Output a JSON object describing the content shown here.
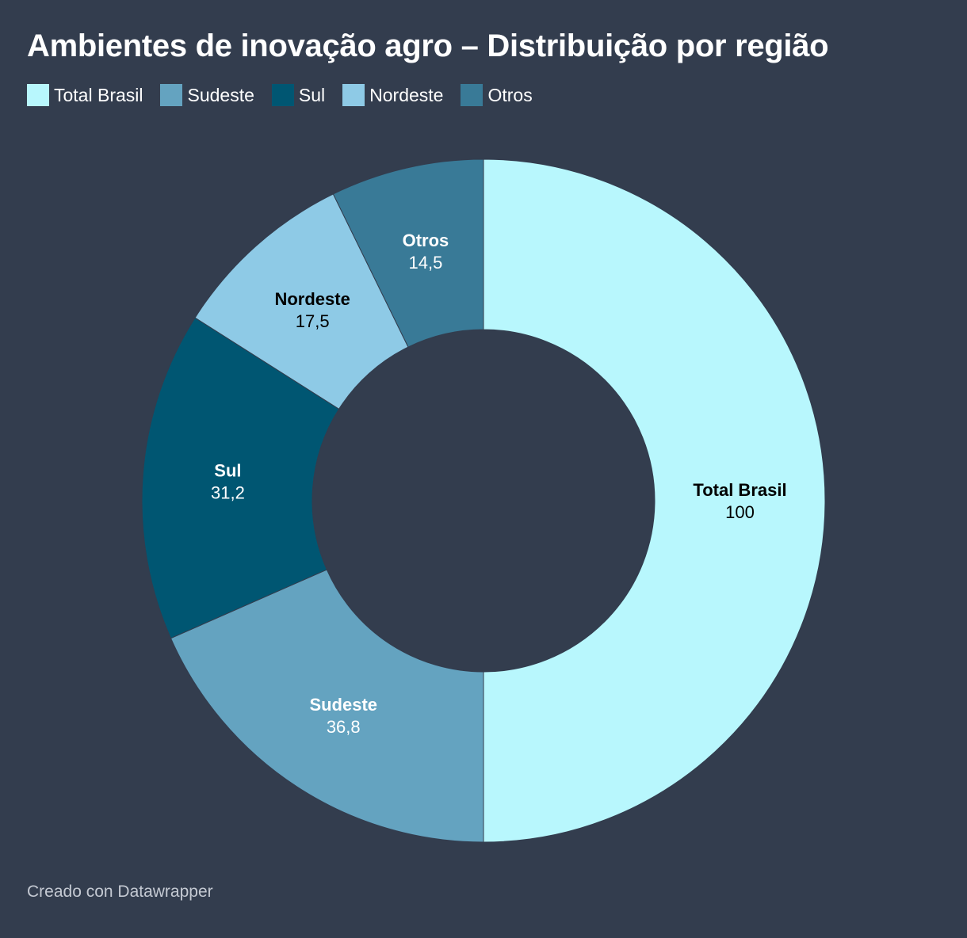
{
  "title": "Ambientes de inovação agro – Distribuição por região",
  "footer": "Creado con Datawrapper",
  "colors": {
    "background": "#333d4e",
    "total_brasil": "#b8f7fd",
    "sudeste": "#64a3c0",
    "sul": "#005672",
    "nordeste": "#8ecae6",
    "otros": "#397a97"
  },
  "chart_data": {
    "type": "donut",
    "title": "Ambientes de inovação agro – Distribuição por região",
    "categories": [
      "Total Brasil",
      "Sudeste",
      "Sul",
      "Nordeste",
      "Otros"
    ],
    "values": [
      100,
      36.8,
      31.2,
      17.5,
      14.5
    ],
    "value_labels": [
      "100",
      "36,8",
      "31,2",
      "17,5",
      "14,5"
    ],
    "colors": [
      "#b8f7fd",
      "#64a3c0",
      "#005672",
      "#8ecae6",
      "#397a97"
    ],
    "label_colors": [
      "#000000",
      "#ffffff",
      "#ffffff",
      "#000000",
      "#ffffff"
    ],
    "legend_position": "top-left"
  }
}
